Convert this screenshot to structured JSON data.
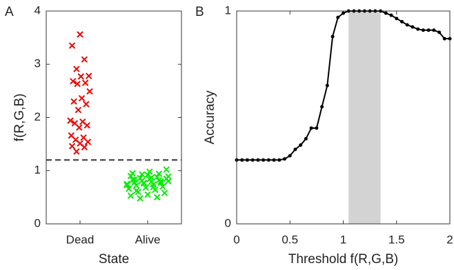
{
  "chart_data": [
    {
      "type": "scatter",
      "panel_label": "A",
      "ylabel": "f(R,G,B)",
      "xlabel": "State",
      "categories": [
        "Dead",
        "Alive"
      ],
      "ylim": [
        0,
        4
      ],
      "yticks": [
        0,
        1,
        2,
        3,
        4
      ],
      "reference_line": 1.2,
      "reference_color": "#555555",
      "series": [
        {
          "color": "#ee0000",
          "values": [
            3.56,
            3.35,
            3.09,
            2.91,
            2.78,
            2.77,
            2.68,
            2.65,
            2.63,
            2.49,
            2.36,
            2.3,
            2.25,
            2.14,
            1.94,
            1.92,
            1.89,
            1.85,
            1.81,
            1.66,
            1.62,
            1.58,
            1.54,
            1.51,
            1.46,
            1.44,
            1.36
          ]
        },
        {
          "color": "#00ee00",
          "values": [
            0.92,
            0.9,
            0.88,
            0.86,
            0.85,
            0.84,
            0.83,
            0.82,
            0.81,
            0.8,
            0.79,
            0.78,
            0.77,
            0.76,
            0.75,
            0.74,
            0.72,
            0.7,
            0.68,
            0.66,
            0.64,
            0.6,
            0.58,
            0.55,
            0.53,
            0.5,
            0.48,
            1.02,
            0.98,
            0.95,
            0.94,
            0.93,
            0.89,
            0.87,
            0.83,
            0.8,
            0.77,
            0.73,
            0.69,
            0.62
          ]
        }
      ]
    },
    {
      "type": "line",
      "panel_label": "B",
      "ylabel": "Accuracy",
      "xlabel": "Threshold f(R,G,B)",
      "xlim": [
        0,
        2
      ],
      "xticks": [
        0,
        0.5,
        1,
        1.5,
        2
      ],
      "ylim": [
        0,
        1
      ],
      "yticks": [
        0,
        1
      ],
      "shaded_range": [
        1.05,
        1.35
      ],
      "shade_color": "#d3d3d3",
      "color": "#000000",
      "x": [
        0,
        0.05,
        0.1,
        0.15,
        0.2,
        0.25,
        0.3,
        0.35,
        0.4,
        0.45,
        0.5,
        0.55,
        0.6,
        0.65,
        0.7,
        0.75,
        0.8,
        0.85,
        0.9,
        0.95,
        1,
        1.05,
        1.1,
        1.15,
        1.2,
        1.25,
        1.3,
        1.35,
        1.4,
        1.45,
        1.5,
        1.55,
        1.6,
        1.65,
        1.7,
        1.75,
        1.8,
        1.85,
        1.9,
        1.95,
        2
      ],
      "values": [
        0.3,
        0.3,
        0.3,
        0.3,
        0.3,
        0.3,
        0.3,
        0.3,
        0.3,
        0.305,
        0.32,
        0.35,
        0.37,
        0.4,
        0.45,
        0.45,
        0.55,
        0.65,
        0.88,
        0.97,
        0.99,
        1,
        1,
        1,
        1,
        1,
        1,
        1,
        0.99,
        0.98,
        0.965,
        0.95,
        0.935,
        0.925,
        0.915,
        0.91,
        0.91,
        0.91,
        0.9,
        0.87,
        0.87
      ]
    }
  ]
}
